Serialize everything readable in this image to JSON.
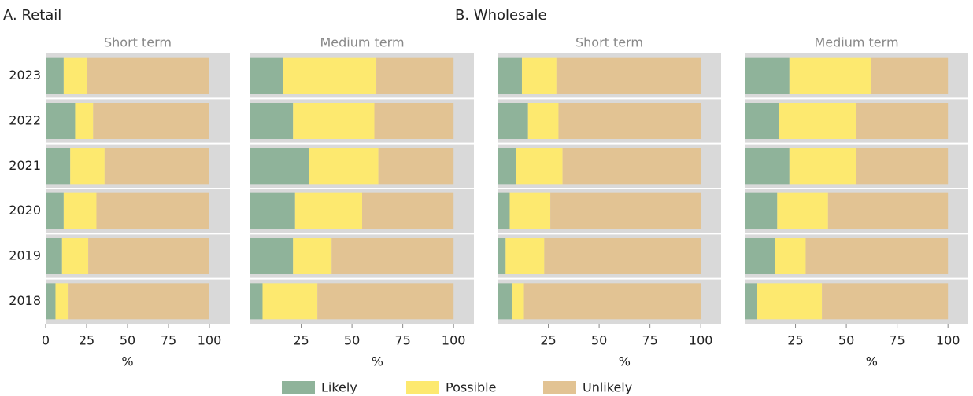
{
  "chart_data": [
    {
      "type": "stacked-bar-horizontal",
      "heading": "A. Retail",
      "title": "Short term",
      "xlabel": "%",
      "categories": [
        "2023",
        "2022",
        "2021",
        "2020",
        "2019",
        "2018"
      ],
      "series": [
        {
          "name": "Likely",
          "color": "#8fb39a",
          "values": [
            11,
            18,
            15,
            11,
            10,
            6
          ]
        },
        {
          "name": "Possible",
          "color": "#fde96f",
          "values": [
            14,
            11,
            21,
            20,
            16,
            8
          ]
        },
        {
          "name": "Unlikely",
          "color": "#e2c393",
          "values": [
            75,
            71,
            64,
            69,
            74,
            86
          ]
        }
      ],
      "xlim": [
        0,
        112.5
      ],
      "xticks": [
        0,
        25,
        50,
        75,
        100
      ]
    },
    {
      "type": "stacked-bar-horizontal",
      "title": "Medium term",
      "xlabel": "%",
      "categories": [
        "2023",
        "2022",
        "2021",
        "2020",
        "2019",
        "2018"
      ],
      "series": [
        {
          "name": "Likely",
          "color": "#8fb39a",
          "values": [
            16,
            21,
            29,
            22,
            21,
            6
          ]
        },
        {
          "name": "Possible",
          "color": "#fde96f",
          "values": [
            46,
            40,
            34,
            33,
            19,
            27
          ]
        },
        {
          "name": "Unlikely",
          "color": "#e2c393",
          "values": [
            38,
            39,
            37,
            45,
            60,
            67
          ]
        }
      ],
      "xlim": [
        0,
        110
      ],
      "xticks": [
        25,
        50,
        75,
        100
      ]
    },
    {
      "type": "stacked-bar-horizontal",
      "heading": "B. Wholesale",
      "title": "Short term",
      "xlabel": "%",
      "categories": [
        "2023",
        "2022",
        "2021",
        "2020",
        "2019",
        "2018"
      ],
      "series": [
        {
          "name": "Likely",
          "color": "#8fb39a",
          "values": [
            12,
            15,
            9,
            6,
            4,
            7
          ]
        },
        {
          "name": "Possible",
          "color": "#fde96f",
          "values": [
            17,
            15,
            23,
            20,
            19,
            6
          ]
        },
        {
          "name": "Unlikely",
          "color": "#e2c393",
          "values": [
            71,
            70,
            68,
            74,
            77,
            87
          ]
        }
      ],
      "xlim": [
        0,
        110
      ],
      "xticks": [
        25,
        50,
        75,
        100
      ]
    },
    {
      "type": "stacked-bar-horizontal",
      "title": "Medium term",
      "xlabel": "%",
      "categories": [
        "2023",
        "2022",
        "2021",
        "2020",
        "2019",
        "2018"
      ],
      "series": [
        {
          "name": "Likely",
          "color": "#8fb39a",
          "values": [
            22,
            17,
            22,
            16,
            15,
            6
          ]
        },
        {
          "name": "Possible",
          "color": "#fde96f",
          "values": [
            40,
            38,
            33,
            25,
            15,
            32
          ]
        },
        {
          "name": "Unlikely",
          "color": "#e2c393",
          "values": [
            38,
            45,
            45,
            59,
            70,
            62
          ]
        }
      ],
      "xlim": [
        0,
        110
      ],
      "xticks": [
        25,
        50,
        75,
        100
      ]
    }
  ]
}
